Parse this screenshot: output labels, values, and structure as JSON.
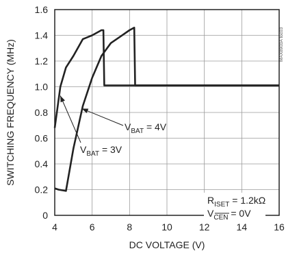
{
  "chart_data": {
    "type": "line",
    "title": "",
    "xlabel": "DC VOLTAGE (V)",
    "ylabel": "SWITCHING FREQUENCY (MHz)",
    "xlim": [
      4,
      16
    ],
    "ylim": [
      0,
      1.6
    ],
    "x_ticks": [
      "4",
      "6",
      "8",
      "10",
      "12",
      "14",
      "16"
    ],
    "y_ticks": [
      "0",
      "0.2",
      "0.4",
      "0.6",
      "0.8",
      "1.0",
      "1.2",
      "1.4",
      "1.6"
    ],
    "grid": true,
    "chart_id": "MAX8903A toc03",
    "series": [
      {
        "name": "VBAT = 3V",
        "label_main": "V",
        "label_sub": "BAT",
        "label_rest": " = 3V",
        "x": [
          4.0,
          4.3,
          4.6,
          5.0,
          5.5,
          6.0,
          6.5,
          6.6,
          6.65,
          7.0,
          8.0,
          9.0,
          10.0,
          12.0,
          14.0,
          16.0
        ],
        "y": [
          0.68,
          1.0,
          1.15,
          1.24,
          1.37,
          1.4,
          1.44,
          1.44,
          1.01,
          1.01,
          1.01,
          1.01,
          1.01,
          1.01,
          1.01,
          1.01
        ]
      },
      {
        "name": "VBAT = 4V",
        "label_main": "V",
        "label_sub": "BAT",
        "label_rest": " = 4V",
        "x": [
          4.0,
          4.2,
          4.6,
          5.0,
          5.5,
          6.0,
          6.5,
          7.0,
          7.5,
          8.0,
          8.25,
          8.3,
          9.0,
          10.0,
          12.0,
          14.0,
          16.0
        ],
        "y": [
          0.21,
          0.2,
          0.19,
          0.52,
          0.85,
          1.07,
          1.24,
          1.34,
          1.39,
          1.44,
          1.46,
          1.01,
          1.01,
          1.01,
          1.01,
          1.01,
          1.01
        ]
      }
    ],
    "conditions": [
      {
        "main": "R",
        "sub": "ISET",
        "rest": " = 1.2kΩ"
      },
      {
        "main": "V",
        "sub": "CEN",
        "rest": " = 0V",
        "sub_overline": true
      }
    ]
  }
}
